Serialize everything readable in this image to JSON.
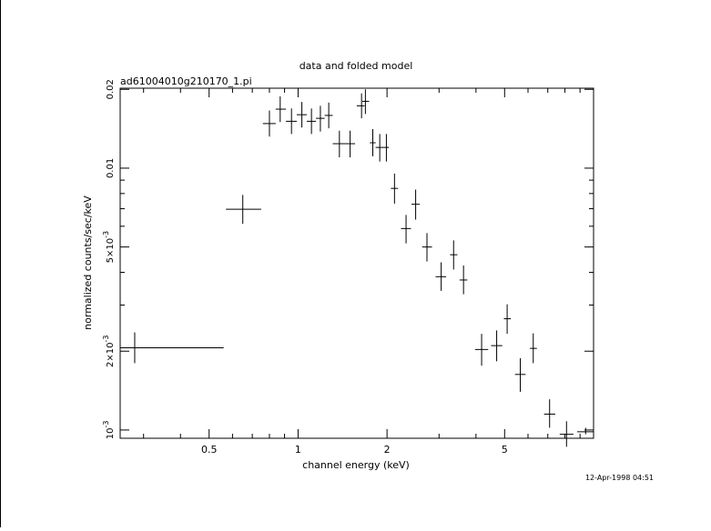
{
  "chart_data": {
    "type": "scatter",
    "title": "data and folded model",
    "subtitle": "ad61004010g210170_1.pi",
    "xlabel": "channel energy (keV)",
    "ylabel": "normalized counts/sec/keV",
    "timestamp": "12-Apr-1998 04:51",
    "x_scale": "log",
    "y_scale": "log",
    "xlim": [
      0.25,
      10.0
    ],
    "ylim": [
      0.00093,
      0.0202
    ],
    "x_ticks": [
      {
        "value": 0.5,
        "label": "0.5"
      },
      {
        "value": 1,
        "label": "1"
      },
      {
        "value": 2,
        "label": "2"
      },
      {
        "value": 5,
        "label": "5"
      }
    ],
    "y_ticks": [
      {
        "value": 0.001,
        "label": "10-3",
        "mant": "10",
        "exp": "-3"
      },
      {
        "value": 0.002,
        "label": "2×10-3",
        "mant": "2×10",
        "exp": "-3"
      },
      {
        "value": 0.005,
        "label": "5×10-3",
        "mant": "5×10",
        "exp": "-3"
      },
      {
        "value": 0.01,
        "label": "0.01",
        "mant": "0.01",
        "exp": ""
      },
      {
        "value": 0.02,
        "label": "0.02",
        "mant": "0.02",
        "exp": ""
      }
    ],
    "points": [
      {
        "x": 0.28,
        "xlo": 0.25,
        "xhi": 0.56,
        "y": 0.00206,
        "ylo": 0.0018,
        "yhi": 0.00236
      },
      {
        "x": 0.65,
        "xlo": 0.57,
        "xhi": 0.75,
        "y": 0.00697,
        "ylo": 0.00613,
        "yhi": 0.0079
      },
      {
        "x": 0.8,
        "xlo": 0.76,
        "xhi": 0.84,
        "y": 0.0148,
        "ylo": 0.0132,
        "yhi": 0.0166
      },
      {
        "x": 0.87,
        "xlo": 0.84,
        "xhi": 0.91,
        "y": 0.0168,
        "ylo": 0.015,
        "yhi": 0.0188
      },
      {
        "x": 0.95,
        "xlo": 0.91,
        "xhi": 0.99,
        "y": 0.0151,
        "ylo": 0.0135,
        "yhi": 0.0169
      },
      {
        "x": 1.03,
        "xlo": 0.99,
        "xhi": 1.07,
        "y": 0.016,
        "ylo": 0.0143,
        "yhi": 0.0179
      },
      {
        "x": 1.11,
        "xlo": 1.07,
        "xhi": 1.15,
        "y": 0.0151,
        "ylo": 0.0135,
        "yhi": 0.0169
      },
      {
        "x": 1.19,
        "xlo": 1.15,
        "xhi": 1.23,
        "y": 0.0155,
        "ylo": 0.0138,
        "yhi": 0.0173
      },
      {
        "x": 1.27,
        "xlo": 1.23,
        "xhi": 1.31,
        "y": 0.0159,
        "ylo": 0.0142,
        "yhi": 0.0178
      },
      {
        "x": 1.38,
        "xlo": 1.31,
        "xhi": 1.45,
        "y": 0.0124,
        "ylo": 0.011,
        "yhi": 0.0139
      },
      {
        "x": 1.5,
        "xlo": 1.45,
        "xhi": 1.56,
        "y": 0.0124,
        "ylo": 0.011,
        "yhi": 0.0139
      },
      {
        "x": 1.64,
        "xlo": 1.58,
        "xhi": 1.68,
        "y": 0.0173,
        "ylo": 0.0155,
        "yhi": 0.0193
      },
      {
        "x": 1.69,
        "xlo": 1.65,
        "xhi": 1.74,
        "y": 0.018,
        "ylo": 0.0161,
        "yhi": 0.02
      },
      {
        "x": 1.79,
        "xlo": 1.75,
        "xhi": 1.83,
        "y": 0.0125,
        "ylo": 0.0111,
        "yhi": 0.0141
      },
      {
        "x": 1.89,
        "xlo": 1.83,
        "xhi": 1.95,
        "y": 0.012,
        "ylo": 0.0106,
        "yhi": 0.0135
      },
      {
        "x": 1.99,
        "xlo": 1.95,
        "xhi": 2.03,
        "y": 0.012,
        "ylo": 0.0106,
        "yhi": 0.0135
      },
      {
        "x": 2.12,
        "xlo": 2.06,
        "xhi": 2.18,
        "y": 0.00837,
        "ylo": 0.00732,
        "yhi": 0.00953
      },
      {
        "x": 2.32,
        "xlo": 2.23,
        "xhi": 2.41,
        "y": 0.00588,
        "ylo": 0.00516,
        "yhi": 0.00663
      },
      {
        "x": 2.5,
        "xlo": 2.42,
        "xhi": 2.58,
        "y": 0.00728,
        "ylo": 0.00636,
        "yhi": 0.00828
      },
      {
        "x": 2.73,
        "xlo": 2.63,
        "xhi": 2.84,
        "y": 0.005,
        "ylo": 0.0044,
        "yhi": 0.00565
      },
      {
        "x": 3.05,
        "xlo": 2.92,
        "xhi": 3.17,
        "y": 0.00385,
        "ylo": 0.0034,
        "yhi": 0.00437
      },
      {
        "x": 3.36,
        "xlo": 3.27,
        "xhi": 3.46,
        "y": 0.00467,
        "ylo": 0.0041,
        "yhi": 0.0053
      },
      {
        "x": 3.63,
        "xlo": 3.52,
        "xhi": 3.74,
        "y": 0.00374,
        "ylo": 0.0033,
        "yhi": 0.00425
      },
      {
        "x": 4.18,
        "xlo": 3.97,
        "xhi": 4.4,
        "y": 0.00203,
        "ylo": 0.00176,
        "yhi": 0.00233
      },
      {
        "x": 4.7,
        "xlo": 4.5,
        "xhi": 4.91,
        "y": 0.0021,
        "ylo": 0.00183,
        "yhi": 0.0024
      },
      {
        "x": 5.1,
        "xlo": 4.97,
        "xhi": 5.25,
        "y": 0.00266,
        "ylo": 0.00233,
        "yhi": 0.00302
      },
      {
        "x": 5.65,
        "xlo": 5.42,
        "xhi": 5.89,
        "y": 0.00163,
        "ylo": 0.0014,
        "yhi": 0.00188
      },
      {
        "x": 6.25,
        "xlo": 6.09,
        "xhi": 6.43,
        "y": 0.00205,
        "ylo": 0.0018,
        "yhi": 0.00234
      },
      {
        "x": 7.1,
        "xlo": 6.8,
        "xhi": 7.42,
        "y": 0.00115,
        "ylo": 0.00102,
        "yhi": 0.00131
      },
      {
        "x": 8.1,
        "xlo": 7.68,
        "xhi": 8.55,
        "y": 0.000963,
        "ylo": 0.000863,
        "yhi": 0.00108
      },
      {
        "x": 9.4,
        "xlo": 8.8,
        "xhi": 10.0,
        "y": 0.000985,
        "ylo": 0.000963,
        "yhi": 0.00102
      }
    ]
  }
}
